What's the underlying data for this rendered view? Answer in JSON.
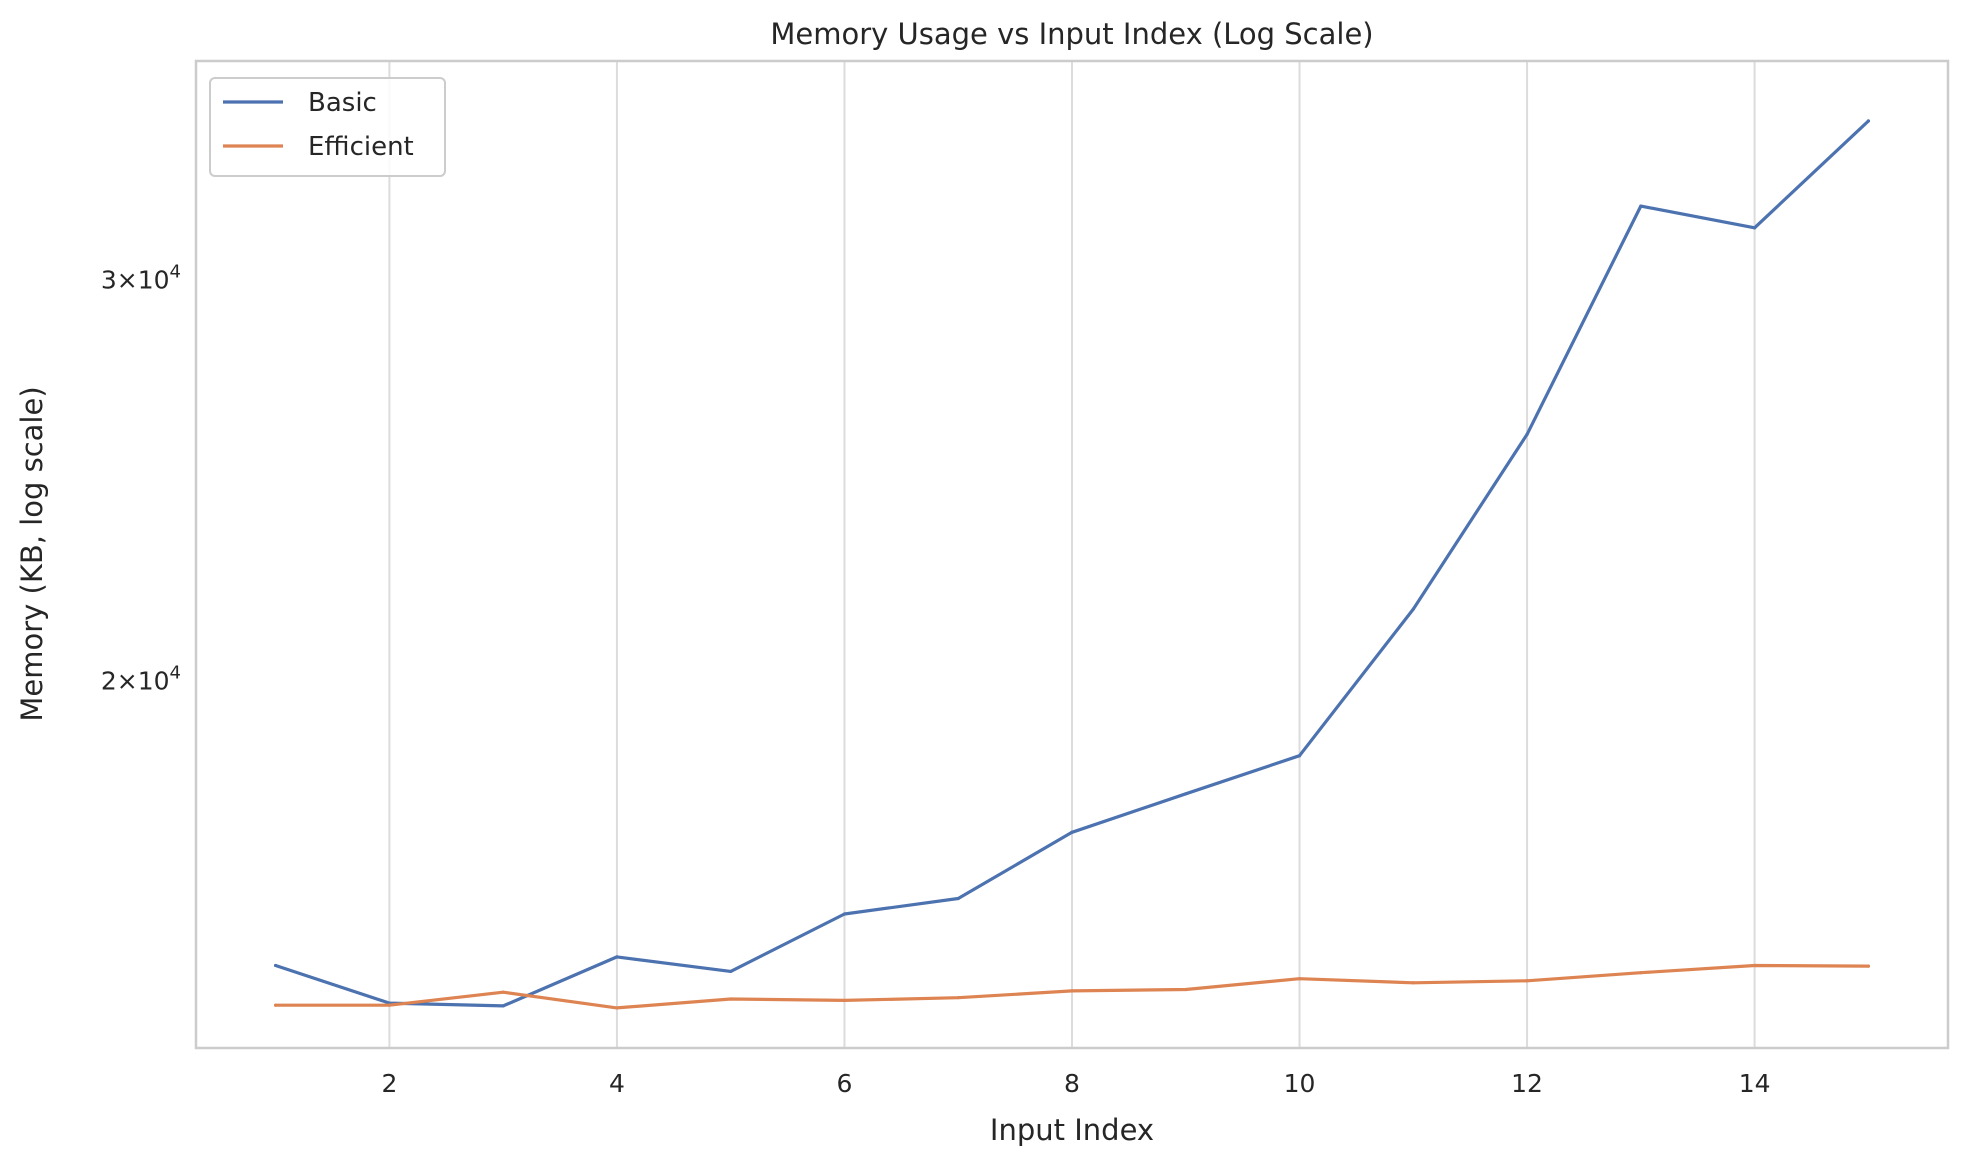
{
  "chart_data": {
    "type": "line",
    "title": "Memory Usage vs Input Index (Log Scale)",
    "xlabel": "Input Index",
    "ylabel": "Memory (KB, log scale)",
    "x": [
      1,
      2,
      3,
      4,
      5,
      6,
      7,
      8,
      9,
      10,
      11,
      12,
      13,
      14,
      15
    ],
    "xlim": [
      0.3,
      15.7
    ],
    "ylim": [
      13800,
      37400
    ],
    "yscale": "log",
    "grid": "x-only",
    "legend_position": "top-left",
    "x_ticks": [
      {
        "value": 2,
        "label": "2"
      },
      {
        "value": 4,
        "label": "4"
      },
      {
        "value": 6,
        "label": "6"
      },
      {
        "value": 8,
        "label": "8"
      },
      {
        "value": 10,
        "label": "10"
      },
      {
        "value": 12,
        "label": "12"
      },
      {
        "value": 14,
        "label": "14"
      }
    ],
    "y_ticks": [
      {
        "value": 20000,
        "mantissa": "2",
        "base": "10",
        "exponent": "4"
      },
      {
        "value": 30000,
        "mantissa": "3",
        "base": "10",
        "exponent": "4"
      }
    ],
    "series": [
      {
        "name": "Basic",
        "color": "#4c72b0",
        "values": [
          15000,
          14440,
          14400,
          15130,
          14910,
          15800,
          16050,
          17160,
          17840,
          18540,
          21500,
          25650,
          32300,
          31600,
          35200
        ]
      },
      {
        "name": "Efficient",
        "color": "#dd8452",
        "values": [
          14410,
          14410,
          14600,
          14370,
          14500,
          14480,
          14520,
          14620,
          14640,
          14800,
          14740,
          14770,
          14890,
          15000,
          14990
        ]
      }
    ]
  }
}
